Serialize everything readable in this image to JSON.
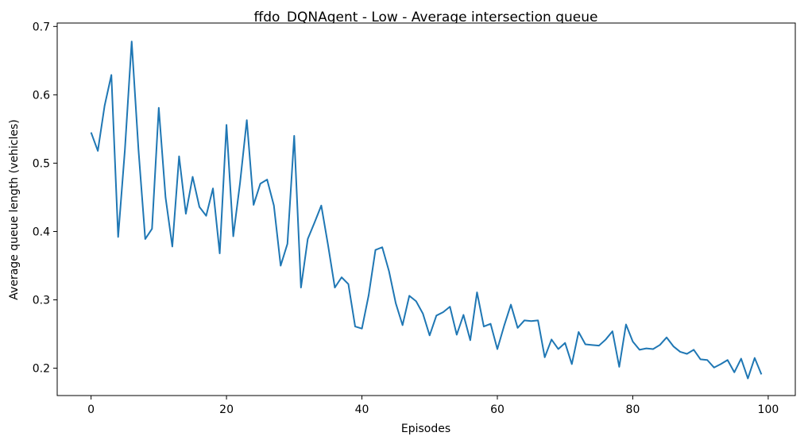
{
  "chart_data": {
    "type": "line",
    "title": "ffdo_DQNAgent - Low - Average intersection queue",
    "xlabel": "Episodes",
    "ylabel": "Average queue length (vehicles)",
    "xlim": [
      -5,
      104
    ],
    "ylim": [
      0.16,
      0.705
    ],
    "xticks": [
      0,
      20,
      40,
      60,
      80,
      100
    ],
    "yticks": [
      0.2,
      0.3,
      0.4,
      0.5,
      0.6,
      0.7
    ],
    "xtick_labels": [
      "0",
      "20",
      "40",
      "60",
      "80",
      "100"
    ],
    "ytick_labels": [
      "0.2",
      "0.3",
      "0.4",
      "0.5",
      "0.6",
      "0.7"
    ],
    "grid": false,
    "series": [
      {
        "color": "#1f77b4",
        "x": [
          0,
          1,
          2,
          3,
          4,
          5,
          6,
          7,
          8,
          9,
          10,
          11,
          12,
          13,
          14,
          15,
          16,
          17,
          18,
          19,
          20,
          21,
          22,
          23,
          24,
          25,
          26,
          27,
          28,
          29,
          30,
          31,
          32,
          33,
          34,
          35,
          36,
          37,
          38,
          39,
          40,
          41,
          42,
          43,
          44,
          45,
          46,
          47,
          48,
          49,
          50,
          51,
          52,
          53,
          54,
          55,
          56,
          57,
          58,
          59,
          60,
          61,
          62,
          63,
          64,
          65,
          66,
          67,
          68,
          69,
          70,
          71,
          72,
          73,
          74,
          75,
          76,
          77,
          78,
          79,
          80,
          81,
          82,
          83,
          84,
          85,
          86,
          87,
          88,
          89,
          90,
          91,
          92,
          93,
          94,
          95,
          96,
          97,
          98,
          99
        ],
        "y": [
          0.545,
          0.518,
          0.584,
          0.629,
          0.392,
          0.52,
          0.678,
          0.52,
          0.389,
          0.404,
          0.581,
          0.45,
          0.378,
          0.51,
          0.426,
          0.48,
          0.436,
          0.423,
          0.463,
          0.368,
          0.556,
          0.393,
          0.471,
          0.563,
          0.439,
          0.47,
          0.476,
          0.438,
          0.35,
          0.382,
          0.54,
          0.318,
          0.389,
          0.413,
          0.438,
          0.38,
          0.318,
          0.333,
          0.323,
          0.261,
          0.258,
          0.307,
          0.373,
          0.377,
          0.342,
          0.295,
          0.263,
          0.306,
          0.298,
          0.28,
          0.248,
          0.277,
          0.282,
          0.29,
          0.249,
          0.278,
          0.241,
          0.311,
          0.261,
          0.265,
          0.228,
          0.262,
          0.293,
          0.259,
          0.27,
          0.269,
          0.27,
          0.216,
          0.242,
          0.228,
          0.237,
          0.206,
          0.253,
          0.235,
          0.234,
          0.233,
          0.242,
          0.254,
          0.202,
          0.264,
          0.239,
          0.227,
          0.229,
          0.228,
          0.234,
          0.245,
          0.232,
          0.224,
          0.221,
          0.227,
          0.213,
          0.212,
          0.201,
          0.206,
          0.212,
          0.194,
          0.214,
          0.185,
          0.215,
          0.191
        ]
      }
    ]
  }
}
